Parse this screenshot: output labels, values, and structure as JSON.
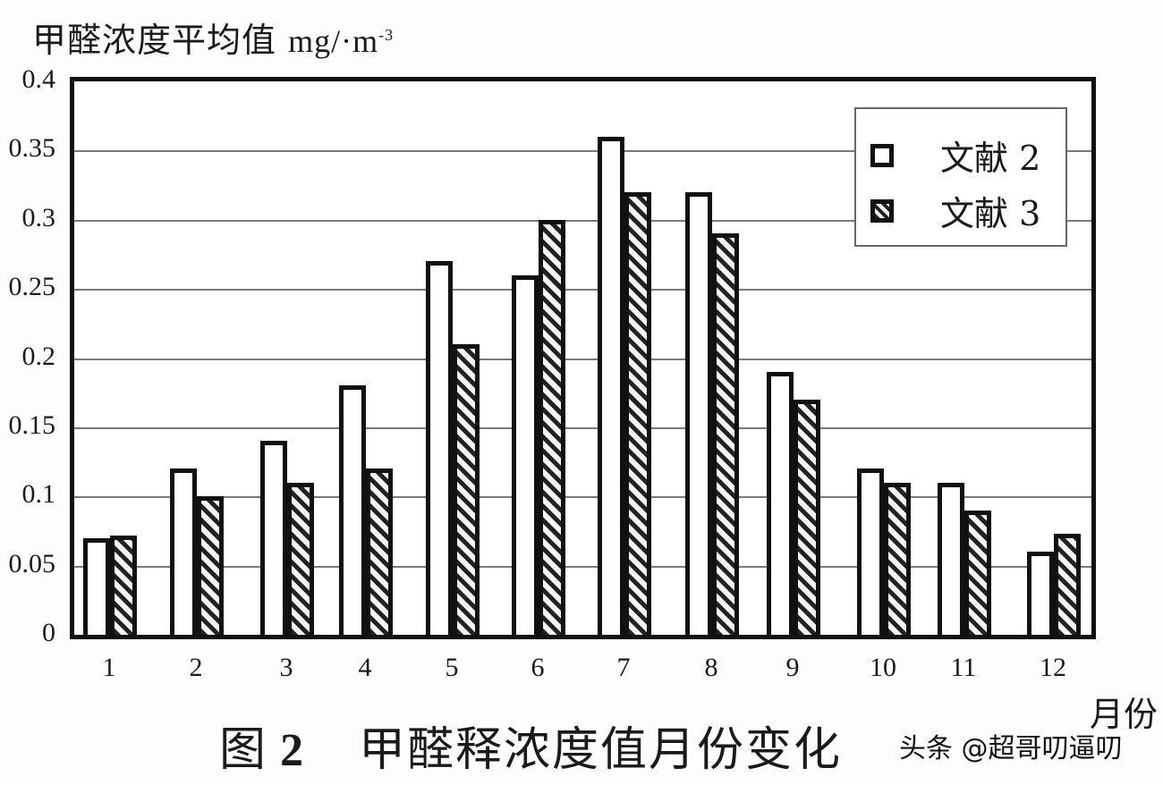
{
  "chart_data": {
    "type": "bar",
    "title": "图 2  甲醛释浓度值月份变化",
    "xlabel": "月份",
    "ylabel": "甲醛浓度平均值 mg/·m-3",
    "ylim": [
      0,
      0.4
    ],
    "yticks": [
      "0",
      "0.05",
      "0.1",
      "0.15",
      "0.2",
      "0.25",
      "0.3",
      "0.35",
      "0.4"
    ],
    "grid": true,
    "legend_position": "top-right",
    "categories": [
      "1",
      "2",
      "3",
      "4",
      "5",
      "6",
      "7",
      "8",
      "9",
      "10",
      "11",
      "12"
    ],
    "series": [
      {
        "name": "文献 2",
        "pattern": "white",
        "values": [
          0.07,
          0.12,
          0.14,
          0.18,
          0.27,
          0.26,
          0.36,
          0.32,
          0.19,
          0.12,
          0.11,
          0.06
        ]
      },
      {
        "name": "文献 3",
        "pattern": "hatched",
        "values": [
          0.072,
          0.1,
          0.11,
          0.12,
          0.21,
          0.3,
          0.32,
          0.29,
          0.17,
          0.11,
          0.09,
          0.073
        ]
      }
    ]
  },
  "labels": {
    "ytitle_cn": "甲醛浓度平均值 ",
    "ytitle_unit": "mg/·m",
    "ytitle_sup": "-3",
    "xlabel": "月份",
    "caption_prefix": "图",
    "caption_num": "2",
    "caption_text": "甲醛释浓度值月份变化",
    "legend_1": "文献 2",
    "legend_2": "文献 3",
    "watermark": "头条 @超哥叨逼叨"
  },
  "colors": {
    "ink": "#111111",
    "grid": "#7a7a7a",
    "background": "#fdfdfd"
  }
}
